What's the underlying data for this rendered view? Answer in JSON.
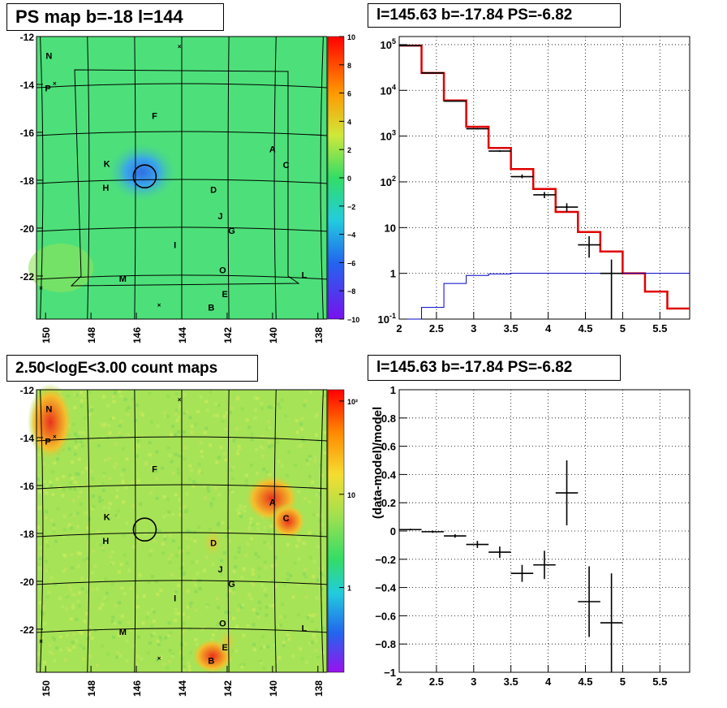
{
  "panels": {
    "tl_title": "PS map b=-18 l=144",
    "tr_title": "l=145.63 b=-17.84 PS=-6.82",
    "bl_title": "2.50<logE<3.00 count maps",
    "br_title": "l=145.63 b=-17.84 PS=-6.82"
  },
  "colors": {
    "ps_map_background": "#4de07a",
    "count_map_background": "#a7e357",
    "model_line": "#e00000",
    "background_line": "#0000cc",
    "data_points": "#000000",
    "grid": "#000000"
  },
  "chart_data": [
    {
      "id": "ps_map",
      "type": "heatmap",
      "title": "PS map b=-18 l=144",
      "x_ticks": [
        "150",
        "148",
        "146",
        "144",
        "142",
        "140",
        "138"
      ],
      "y_ticks": [
        "-12",
        "-14",
        "-16",
        "-18",
        "-20",
        "-22"
      ],
      "xlim": [
        150.4,
        137.6
      ],
      "ylim": [
        -23.8,
        -12
      ],
      "colorbar": {
        "ticks": [
          "10",
          "8",
          "6",
          "4",
          "2",
          "0",
          "−2",
          "−4",
          "−6",
          "−8",
          "−10"
        ],
        "range": [
          -10,
          10
        ]
      },
      "sources": [
        {
          "label": "N",
          "l": 149.85,
          "b": -12.8
        },
        {
          "label": "P",
          "l": 149.9,
          "b": -14.15
        },
        {
          "label": "F",
          "l": 145.2,
          "b": -15.3
        },
        {
          "label": "A",
          "l": 140.0,
          "b": -16.7
        },
        {
          "label": "C",
          "l": 139.4,
          "b": -17.35
        },
        {
          "label": "K",
          "l": 147.3,
          "b": -17.3
        },
        {
          "label": "H",
          "l": 147.35,
          "b": -18.3
        },
        {
          "label": "D",
          "l": 142.6,
          "b": -18.4
        },
        {
          "label": "J",
          "l": 142.3,
          "b": -19.5
        },
        {
          "label": "G",
          "l": 141.8,
          "b": -20.1
        },
        {
          "label": "I",
          "l": 144.3,
          "b": -20.7
        },
        {
          "label": "O",
          "l": 142.2,
          "b": -21.75
        },
        {
          "label": "M",
          "l": 146.6,
          "b": -22.1
        },
        {
          "label": "L",
          "l": 138.6,
          "b": -21.95
        },
        {
          "label": "E",
          "l": 142.1,
          "b": -22.75
        },
        {
          "label": "B",
          "l": 142.7,
          "b": -23.3
        }
      ],
      "markers": [
        {
          "l": 144.1,
          "b": -12.4
        },
        {
          "l": 149.6,
          "b": -13.95
        },
        {
          "l": 150.2,
          "b": -22.5
        },
        {
          "l": 145.0,
          "b": -23.2
        }
      ],
      "roi_circle": {
        "l": 145.63,
        "b": -17.84
      }
    },
    {
      "id": "spectrum",
      "type": "line",
      "title": "l=145.63 b=-17.84 PS=-6.82",
      "x_ticks": [
        "2",
        "2.5",
        "3",
        "3.5",
        "4",
        "4.5",
        "5",
        "5.5"
      ],
      "y_ticks": [
        "10^-1",
        "1",
        "10",
        "10^2",
        "10^3",
        "10^4",
        "10^5"
      ],
      "xlim": [
        2,
        5.9
      ],
      "ylim": [
        0.1,
        150000
      ],
      "yscale": "log",
      "series": [
        {
          "edges": [
            2.0,
            2.3,
            2.6,
            2.9,
            3.2,
            3.5,
            3.8,
            4.1,
            4.4,
            4.7,
            5.0,
            5.3,
            5.6,
            5.9
          ],
          "values": [
            95000,
            24000,
            6000,
            1600,
            550,
            190,
            70,
            22,
            8,
            3,
            1,
            0.4,
            0.17
          ]
        },
        {
          "edges": [
            2.0,
            2.3,
            2.6,
            2.9,
            3.2,
            3.5,
            3.8,
            4.1,
            4.4,
            4.7,
            5.0,
            5.3,
            5.6,
            5.9
          ],
          "values": [
            0.05,
            0.18,
            0.6,
            0.9,
            0.97,
            1.0,
            1.0,
            1.0,
            1.0,
            1.0,
            1.0,
            1.0,
            1.0
          ]
        }
      ],
      "points": [
        {
          "x": 2.15,
          "y": 95000,
          "ylo": 94500,
          "yhi": 95500
        },
        {
          "x": 2.45,
          "y": 24000,
          "ylo": 23800,
          "yhi": 24200
        },
        {
          "x": 2.75,
          "y": 5800,
          "ylo": 5700,
          "yhi": 5900
        },
        {
          "x": 3.05,
          "y": 1450,
          "ylo": 1400,
          "yhi": 1500
        },
        {
          "x": 3.35,
          "y": 470,
          "ylo": 450,
          "yhi": 490
        },
        {
          "x": 3.65,
          "y": 130,
          "ylo": 120,
          "yhi": 145
        },
        {
          "x": 3.95,
          "y": 52,
          "ylo": 44,
          "yhi": 60
        },
        {
          "x": 4.25,
          "y": 28,
          "ylo": 22,
          "yhi": 34
        },
        {
          "x": 4.55,
          "y": 4.2,
          "ylo": 2.2,
          "yhi": 6.5
        },
        {
          "x": 4.85,
          "y": 1,
          "ylo": 0.1,
          "yhi": 2
        }
      ]
    },
    {
      "id": "count_map",
      "type": "heatmap",
      "title": "2.50<logE<3.00 count maps",
      "x_ticks": [
        "150",
        "148",
        "146",
        "144",
        "142",
        "140",
        "138"
      ],
      "y_ticks": [
        "-12",
        "-14",
        "-16",
        "-18",
        "-20",
        "-22"
      ],
      "xlim": [
        150.4,
        137.6
      ],
      "ylim": [
        -23.8,
        -12
      ],
      "colorbar": {
        "ticks": [
          "10²",
          "10",
          "1"
        ],
        "scale": "log"
      },
      "sources": [
        {
          "label": "N",
          "l": 149.85,
          "b": -12.8
        },
        {
          "label": "P",
          "l": 149.9,
          "b": -14.15
        },
        {
          "label": "F",
          "l": 145.2,
          "b": -15.3
        },
        {
          "label": "A",
          "l": 140.0,
          "b": -16.7
        },
        {
          "label": "C",
          "l": 139.4,
          "b": -17.35
        },
        {
          "label": "K",
          "l": 147.3,
          "b": -17.3
        },
        {
          "label": "H",
          "l": 147.35,
          "b": -18.3
        },
        {
          "label": "D",
          "l": 142.6,
          "b": -18.4
        },
        {
          "label": "J",
          "l": 142.3,
          "b": -19.5
        },
        {
          "label": "G",
          "l": 141.8,
          "b": -20.1
        },
        {
          "label": "I",
          "l": 144.3,
          "b": -20.7
        },
        {
          "label": "O",
          "l": 142.2,
          "b": -21.75
        },
        {
          "label": "M",
          "l": 146.6,
          "b": -22.1
        },
        {
          "label": "L",
          "l": 138.6,
          "b": -21.95
        },
        {
          "label": "E",
          "l": 142.1,
          "b": -22.75
        },
        {
          "label": "B",
          "l": 142.7,
          "b": -23.3
        }
      ],
      "markers": [
        {
          "l": 144.1,
          "b": -12.4
        },
        {
          "l": 149.6,
          "b": -13.95
        },
        {
          "l": 150.2,
          "b": -22.5
        },
        {
          "l": 145.0,
          "b": -23.2
        }
      ],
      "roi_circle": {
        "l": 145.63,
        "b": -17.84
      }
    },
    {
      "id": "residuals",
      "type": "scatter",
      "title": "l=145.63 b=-17.84 PS=-6.82",
      "ylabel": "(data-model)/model",
      "x_ticks": [
        "2",
        "2.5",
        "3",
        "3.5",
        "4",
        "4.5",
        "5",
        "5.5"
      ],
      "y_ticks": [
        "1",
        "0.8",
        "0.6",
        "0.4",
        "0.2",
        "0",
        "-0.2",
        "-0.4",
        "-0.6",
        "-0.8",
        "-1"
      ],
      "xlim": [
        2,
        5.9
      ],
      "ylim": [
        -1,
        1
      ],
      "points": [
        {
          "x": 2.15,
          "y": 0.01,
          "yerr": 0.006
        },
        {
          "x": 2.45,
          "y": -0.005,
          "yerr": 0.008
        },
        {
          "x": 2.75,
          "y": -0.035,
          "yerr": 0.012
        },
        {
          "x": 3.05,
          "y": -0.095,
          "yerr": 0.025
        },
        {
          "x": 3.35,
          "y": -0.15,
          "yerr": 0.04
        },
        {
          "x": 3.65,
          "y": -0.3,
          "yerr": 0.06
        },
        {
          "x": 3.95,
          "y": -0.24,
          "yerr": 0.1
        },
        {
          "x": 4.25,
          "y": 0.27,
          "yerr": 0.23
        },
        {
          "x": 4.55,
          "y": -0.5,
          "yerr": 0.25
        },
        {
          "x": 4.85,
          "y": -0.65,
          "yerr": 0.35
        }
      ]
    }
  ]
}
